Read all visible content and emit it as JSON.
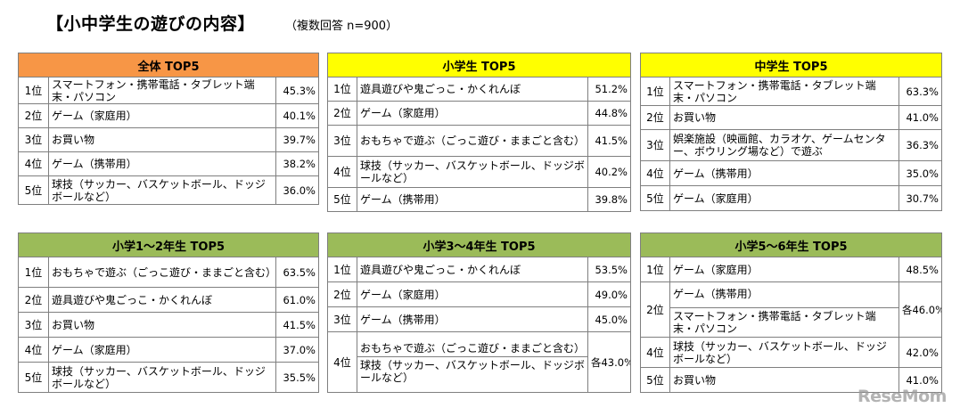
{
  "title": "【小中学生の遊びの内容】",
  "subtitle": "（複数回答  n=900）",
  "tables": {
    "all": {
      "header": "全体   TOP5",
      "rows": [
        {
          "rank": "1位",
          "item": "スマートフォン・携帯電話・タブレット端末・パソコン",
          "pct": "45.3%"
        },
        {
          "rank": "2位",
          "item": "ゲーム（家庭用）",
          "pct": "40.1%"
        },
        {
          "rank": "3位",
          "item": "お買い物",
          "pct": "39.7%"
        },
        {
          "rank": "4位",
          "item": "ゲーム（携帯用）",
          "pct": "38.2%"
        },
        {
          "rank": "5位",
          "item": "球技（サッカー、バスケットボール、ドッジボールなど）",
          "pct": "36.0%"
        }
      ]
    },
    "elementary": {
      "header": "小学生   TOP5",
      "rows": [
        {
          "rank": "1位",
          "item": "遊具遊びや鬼ごっこ・かくれんぼ",
          "pct": "51.2%"
        },
        {
          "rank": "2位",
          "item": "ゲーム（家庭用）",
          "pct": "44.8%"
        },
        {
          "rank": "3位",
          "item": "おもちゃで遊ぶ（ごっこ遊び・ままごと含む）",
          "pct": "41.5%"
        },
        {
          "rank": "4位",
          "item": "球技（サッカー、バスケットボール、ドッジボールなど）",
          "pct": "40.2%"
        },
        {
          "rank": "5位",
          "item": "ゲーム（携帯用）",
          "pct": "39.8%"
        }
      ]
    },
    "junior_high": {
      "header": "中学生   TOP5",
      "rows": [
        {
          "rank": "1位",
          "item": "スマートフォン・携帯電話・タブレット端末・パソコン",
          "pct": "63.3%"
        },
        {
          "rank": "2位",
          "item": "お買い物",
          "pct": "41.0%"
        },
        {
          "rank": "3位",
          "item": "娯楽施設（映画館、カラオケ、ゲームセンター、ボウリング場など）で遊ぶ",
          "pct": "36.3%"
        },
        {
          "rank": "4位",
          "item": "ゲーム（携帯用）",
          "pct": "35.0%"
        },
        {
          "rank": "5位",
          "item": "ゲーム（家庭用）",
          "pct": "30.7%"
        }
      ]
    },
    "grade1_2": {
      "header": "小学1～2年生   TOP5",
      "rows": [
        {
          "rank": "1位",
          "item": "おもちゃで遊ぶ（ごっこ遊び・ままごと含む）",
          "pct": "63.5%"
        },
        {
          "rank": "2位",
          "item": "遊具遊びや鬼ごっこ・かくれんぼ",
          "pct": "61.0%"
        },
        {
          "rank": "3位",
          "item": "お買い物",
          "pct": "41.5%"
        },
        {
          "rank": "4位",
          "item": "ゲーム（家庭用）",
          "pct": "37.0%"
        },
        {
          "rank": "5位",
          "item": "球技（サッカー、バスケットボール、ドッジボールなど）",
          "pct": "35.5%"
        }
      ]
    },
    "grade3_4": {
      "header": "小学3～4年生   TOP5",
      "rows": [
        {
          "rank": "1位",
          "item": "遊具遊びや鬼ごっこ・かくれんぼ",
          "pct": "53.5%"
        },
        {
          "rank": "2位",
          "item": "ゲーム（家庭用）",
          "pct": "49.0%"
        },
        {
          "rank": "3位",
          "item": "ゲーム（携帯用）",
          "pct": "45.0%"
        },
        {
          "rank": "4位",
          "item": "おもちゃで遊ぶ（ごっこ遊び・ままごと含む）",
          "item2": "球技（サッカー、バスケットボール、ドッジボールなど）",
          "pct": "各43.0%"
        }
      ]
    },
    "grade5_6": {
      "header": "小学5～6年生   TOP5",
      "rows": [
        {
          "rank": "1位",
          "item": "ゲーム（家庭用）",
          "pct": "48.5%"
        },
        {
          "rank": "2位",
          "item": "ゲーム（携帯用）",
          "item2": "スマートフォン・携帯電話・タブレット端末・パソコン",
          "pct": "各46.0%"
        },
        {
          "rank": "4位",
          "item": "球技（サッカー、バスケットボール、ドッジボールなど）",
          "pct": "42.0%"
        },
        {
          "rank": "5位",
          "item": "お買い物",
          "pct": "41.0%"
        }
      ]
    }
  },
  "logo": {
    "text": "ReseMom"
  },
  "colors": {
    "orange": "#f79646",
    "yellow": "#ffff00",
    "green": "#9bbb59"
  }
}
